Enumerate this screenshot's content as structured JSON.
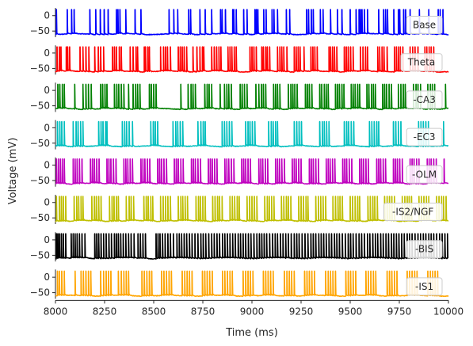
{
  "chart_data": {
    "type": "line",
    "title": "",
    "xlabel": "Time (ms)",
    "ylabel": "Voltage (mV)",
    "xlim": [
      8000,
      10000
    ],
    "xticks": [
      "8000",
      "8250",
      "8500",
      "8750",
      "9000",
      "9250",
      "9500",
      "9750",
      "10000"
    ],
    "ylim": [
      -70,
      25
    ],
    "yticks": [
      "0",
      "−50"
    ],
    "legend_placement": "right",
    "series": [
      {
        "name": "Base",
        "color": "#0000ff",
        "baseline": -60,
        "spikes": [
          8005,
          8060,
          8082,
          8095,
          8175,
          8205,
          8228,
          8248,
          8268,
          8310,
          8318,
          8328,
          8358,
          8405,
          8435,
          8578,
          8602,
          8622,
          8678,
          8688,
          8735,
          8762,
          8795,
          8840,
          8848,
          8865,
          8902,
          8908,
          8920,
          8958,
          8975,
          9015,
          9022,
          9030,
          9060,
          9072,
          9102,
          9112,
          9130,
          9175,
          9192,
          9278,
          9288,
          9302,
          9312,
          9348,
          9362,
          9400,
          9435,
          9458,
          9500,
          9530,
          9545,
          9552,
          9560,
          9572,
          9588,
          9645,
          9670,
          9680,
          9690,
          9722,
          9745,
          9752,
          9772,
          9782,
          9805,
          9852,
          9900,
          9948,
          9958,
          9972
        ]
      },
      {
        "name": "Theta",
        "color": "#ff0000",
        "baseline": -60,
        "spikes": [
          8008,
          8020,
          8028,
          8055,
          8062,
          8072,
          8125,
          8140,
          8155,
          8170,
          8200,
          8218,
          8230,
          8245,
          8290,
          8300,
          8310,
          8325,
          8335,
          8380,
          8395,
          8410,
          8418,
          8452,
          8458,
          8470,
          8478,
          8535,
          8550,
          8560,
          8570,
          8585,
          8625,
          8635,
          8645,
          8655,
          8668,
          8700,
          8720,
          8735,
          8748,
          8755,
          8795,
          8808,
          8820,
          8832,
          8842,
          8878,
          8888,
          8898,
          8910,
          8920,
          8990,
          9000,
          9010,
          9022,
          9050,
          9058,
          9070,
          9078,
          9090,
          9130,
          9142,
          9152,
          9162,
          9178,
          9215,
          9225,
          9235,
          9245,
          9265,
          9300,
          9310,
          9320,
          9332,
          9392,
          9400,
          9410,
          9420,
          9432,
          9470,
          9480,
          9490,
          9502,
          9515,
          9552,
          9565,
          9578,
          9588,
          9640,
          9650,
          9662,
          9672,
          9688,
          9725,
          9735,
          9745,
          9755,
          9768,
          9805,
          9818,
          9830,
          9845,
          9880,
          9890,
          9902,
          9912,
          9925
        ]
      },
      {
        "name": "-CA3",
        "color": "#008000",
        "baseline": -60,
        "spikes": [
          8012,
          8022,
          8035,
          8045,
          8098,
          8140,
          8155,
          8168,
          8182,
          8230,
          8240,
          8252,
          8262,
          8300,
          8312,
          8322,
          8335,
          8348,
          8372,
          8395,
          8408,
          8418,
          8430,
          8478,
          8488,
          8500,
          8512,
          8638,
          8675,
          8690,
          8700,
          8712,
          8760,
          8772,
          8782,
          8795,
          8838,
          8860,
          8872,
          8882,
          8895,
          8940,
          8950,
          8962,
          8975,
          9020,
          9035,
          9048,
          9058,
          9070,
          9110,
          9120,
          9130,
          9142,
          9185,
          9198,
          9208,
          9218,
          9230,
          9272,
          9282,
          9292,
          9305,
          9345,
          9355,
          9368,
          9378,
          9388,
          9425,
          9435,
          9445,
          9458,
          9468,
          9505,
          9515,
          9525,
          9538,
          9548,
          9585,
          9595,
          9608,
          9618,
          9628,
          9665,
          9675,
          9685,
          9698,
          9710,
          9745,
          9758,
          9770,
          9780,
          9822,
          9835,
          9845,
          9858,
          9895,
          9908,
          9918,
          9930,
          9985
        ]
      },
      {
        "name": "-EC3",
        "color": "#00bfbf",
        "baseline": -60,
        "spikes": [
          8010,
          8022,
          8032,
          8045,
          8090,
          8105,
          8115,
          8128,
          8140,
          8220,
          8232,
          8242,
          8255,
          8262,
          8340,
          8352,
          8362,
          8375,
          8392,
          8485,
          8498,
          8508,
          8520,
          8598,
          8612,
          8622,
          8635,
          8648,
          8725,
          8740,
          8752,
          8762,
          8848,
          8860,
          8872,
          8885,
          8898,
          8968,
          8980,
          8990,
          9002,
          9015,
          9085,
          9098,
          9108,
          9120,
          9130,
          9215,
          9228,
          9240,
          9252,
          9345,
          9358,
          9368,
          9380,
          9392,
          9470,
          9482,
          9492,
          9505,
          9518,
          9598,
          9610,
          9622,
          9635,
          9645,
          9720,
          9732,
          9745,
          9758,
          9848,
          9860,
          9872,
          9885,
          9898,
          9975
        ]
      },
      {
        "name": "-OLM",
        "color": "#bf00bf",
        "baseline": -60,
        "spikes": [
          8005,
          8015,
          8025,
          8035,
          8045,
          8090,
          8100,
          8110,
          8122,
          8135,
          8178,
          8188,
          8198,
          8210,
          8222,
          8262,
          8272,
          8282,
          8295,
          8308,
          8348,
          8358,
          8368,
          8380,
          8392,
          8435,
          8445,
          8455,
          8468,
          8480,
          8520,
          8530,
          8540,
          8552,
          8565,
          8605,
          8615,
          8625,
          8638,
          8650,
          8692,
          8702,
          8712,
          8725,
          8738,
          8778,
          8788,
          8798,
          8810,
          8822,
          8862,
          8872,
          8882,
          8895,
          8908,
          8948,
          8958,
          8968,
          8980,
          8992,
          9035,
          9045,
          9055,
          9068,
          9080,
          9120,
          9130,
          9140,
          9152,
          9165,
          9205,
          9215,
          9225,
          9238,
          9250,
          9292,
          9302,
          9312,
          9325,
          9338,
          9378,
          9388,
          9398,
          9410,
          9422,
          9462,
          9472,
          9482,
          9495,
          9508,
          9548,
          9558,
          9568,
          9580,
          9592,
          9635,
          9645,
          9655,
          9668,
          9680,
          9720,
          9730,
          9740,
          9752,
          9765,
          9805,
          9815,
          9825,
          9838,
          9850,
          9892,
          9902,
          9912,
          9925,
          9938,
          9978
        ]
      },
      {
        "name": "-IS2/NGF",
        "color": "#bfbf00",
        "baseline": -60,
        "spikes": [
          8005,
          8020,
          8030,
          8040,
          8052,
          8095,
          8108,
          8118,
          8130,
          8140,
          8185,
          8198,
          8208,
          8220,
          8232,
          8275,
          8288,
          8298,
          8310,
          8320,
          8360,
          8375,
          8385,
          8398,
          8450,
          8462,
          8472,
          8485,
          8495,
          8535,
          8548,
          8560,
          8572,
          8585,
          8625,
          8638,
          8648,
          8660,
          8672,
          8715,
          8728,
          8738,
          8750,
          8762,
          8800,
          8812,
          8825,
          8835,
          8848,
          8888,
          8900,
          8912,
          8925,
          8935,
          8975,
          8988,
          9000,
          9012,
          9025,
          9065,
          9078,
          9088,
          9100,
          9112,
          9150,
          9162,
          9175,
          9185,
          9198,
          9238,
          9250,
          9262,
          9275,
          9285,
          9325,
          9338,
          9350,
          9362,
          9375,
          9412,
          9425,
          9438,
          9448,
          9460,
          9500,
          9512,
          9525,
          9538,
          9548,
          9590,
          9602,
          9615,
          9625,
          9638,
          9675,
          9688,
          9700,
          9712,
          9725,
          9765,
          9778,
          9790,
          9800,
          9812,
          9850,
          9862,
          9875,
          9888,
          9900,
          9940,
          9952,
          9965,
          9975,
          9988
        ]
      },
      {
        "name": "-BIS",
        "color": "#000000",
        "baseline": -60,
        "spikes": [
          8005,
          8012,
          8020,
          8030,
          8040,
          8052,
          8080,
          8090,
          8100,
          8110,
          8122,
          8135,
          8150,
          8200,
          8210,
          8220,
          8232,
          8245,
          8258,
          8272,
          8285,
          8300,
          8310,
          8320,
          8332,
          8345,
          8358,
          8372,
          8385,
          8400,
          8420,
          8432,
          8445,
          8458,
          8512,
          8522,
          8532,
          8545,
          8558,
          8572,
          8585,
          8600,
          8618,
          8630,
          8642,
          8655,
          8668,
          8682,
          8695,
          8710,
          8725,
          8740,
          8752,
          8765,
          8780,
          8795,
          8808,
          8822,
          8835,
          8850,
          8862,
          8875,
          8888,
          8902,
          8915,
          8930,
          8942,
          8955,
          8968,
          8982,
          8995,
          9010,
          9025,
          9038,
          9050,
          9062,
          9075,
          9090,
          9105,
          9118,
          9130,
          9145,
          9158,
          9172,
          9185,
          9200,
          9215,
          9228,
          9240,
          9255,
          9270,
          9285,
          9300,
          9312,
          9325,
          9340,
          9352,
          9365,
          9378,
          9392,
          9405,
          9420,
          9432,
          9445,
          9460,
          9475,
          9490,
          9502,
          9515,
          9530,
          9545,
          9558,
          9572,
          9588,
          9600,
          9615,
          9628,
          9640,
          9655,
          9668,
          9682,
          9695,
          9710,
          9722,
          9735,
          9748,
          9762,
          9775,
          9790,
          9802,
          9815,
          9830,
          9845,
          9858,
          9872,
          9885,
          9900,
          9912,
          9925,
          9940,
          9955,
          9968,
          9982,
          9995
        ]
      },
      {
        "name": "-IS1",
        "color": "#ffa500",
        "baseline": -60,
        "spikes": [
          8010,
          8020,
          8032,
          8045,
          8100,
          8130,
          8142,
          8155,
          8168,
          8180,
          8230,
          8245,
          8258,
          8270,
          8282,
          8320,
          8335,
          8348,
          8360,
          8372,
          8440,
          8452,
          8465,
          8478,
          8490,
          8540,
          8552,
          8565,
          8578,
          8590,
          8645,
          8658,
          8670,
          8682,
          8695,
          8748,
          8760,
          8772,
          8785,
          8798,
          8850,
          8862,
          8875,
          8888,
          8900,
          8955,
          8968,
          8980,
          8992,
          9005,
          9058,
          9070,
          9082,
          9095,
          9108,
          9165,
          9178,
          9190,
          9202,
          9215,
          9268,
          9280,
          9292,
          9305,
          9318,
          9375,
          9388,
          9400,
          9412,
          9425,
          9478,
          9490,
          9502,
          9515,
          9528,
          9580,
          9592,
          9605,
          9618,
          9630,
          9688,
          9700,
          9712,
          9725,
          9738,
          9790,
          9802,
          9815,
          9828,
          9840,
          9895,
          9908,
          9920,
          9932,
          9945
        ]
      }
    ]
  }
}
